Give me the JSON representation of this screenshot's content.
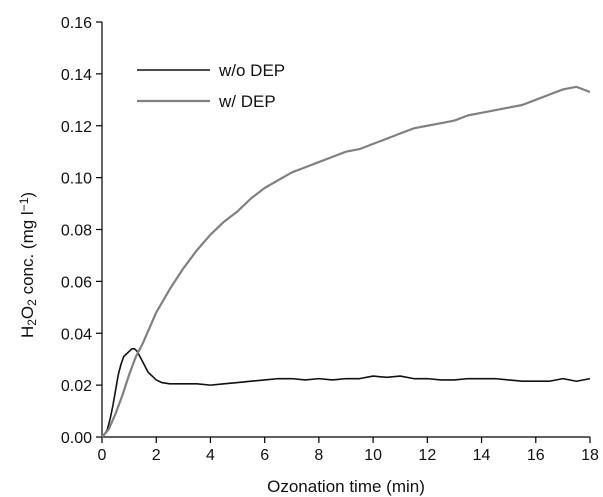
{
  "chart_data": {
    "type": "line",
    "title": "",
    "xlabel": "Ozonation time (min)",
    "ylabel": {
      "prefix": "H",
      "sub1": "2",
      "mid": "O",
      "sub2": "2",
      "suffix": " conc. (mg l",
      "sup": "−1",
      "end": ")"
    },
    "xlim": [
      0,
      18
    ],
    "ylim": [
      0,
      0.16
    ],
    "x_ticks": [
      0,
      2,
      4,
      6,
      8,
      10,
      12,
      14,
      16,
      18
    ],
    "x_tick_labels": [
      "0",
      "2",
      "4",
      "6",
      "8",
      "10",
      "12",
      "14",
      "16",
      "18"
    ],
    "y_ticks": [
      0,
      0.02,
      0.04,
      0.06,
      0.08,
      0.1,
      0.12,
      0.14,
      0.16
    ],
    "y_tick_labels": [
      "0.00",
      "0.02",
      "0.04",
      "0.06",
      "0.08",
      "0.10",
      "0.12",
      "0.14",
      "0.16"
    ],
    "grid": false,
    "legend_position": "top-left",
    "series": [
      {
        "name": "w/o DEP",
        "color": "#111111",
        "x": [
          0,
          0.1,
          0.2,
          0.3,
          0.4,
          0.5,
          0.6,
          0.7,
          0.8,
          0.9,
          1.0,
          1.1,
          1.2,
          1.3,
          1.4,
          1.5,
          1.6,
          1.7,
          1.8,
          1.9,
          2.0,
          2.2,
          2.5,
          3,
          3.5,
          4,
          4.5,
          5,
          5.5,
          6,
          6.5,
          7,
          7.5,
          8,
          8.5,
          9,
          9.5,
          10,
          10.5,
          11,
          11.5,
          12,
          12.5,
          13,
          13.5,
          14,
          14.5,
          15,
          15.5,
          16,
          16.5,
          17,
          17.5,
          18
        ],
        "y": [
          0.0,
          0.001,
          0.003,
          0.007,
          0.012,
          0.018,
          0.024,
          0.028,
          0.031,
          0.032,
          0.033,
          0.034,
          0.034,
          0.033,
          0.031,
          0.029,
          0.027,
          0.025,
          0.024,
          0.023,
          0.022,
          0.021,
          0.0205,
          0.0205,
          0.0205,
          0.02,
          0.0205,
          0.021,
          0.0215,
          0.022,
          0.0225,
          0.0225,
          0.022,
          0.0225,
          0.022,
          0.0225,
          0.0225,
          0.0235,
          0.023,
          0.0235,
          0.0225,
          0.0225,
          0.022,
          0.022,
          0.0225,
          0.0225,
          0.0225,
          0.022,
          0.0215,
          0.0215,
          0.0215,
          0.0225,
          0.0215,
          0.0225
        ]
      },
      {
        "name": "w/ DEP",
        "color": "#808080",
        "x": [
          0,
          0.25,
          0.5,
          0.75,
          1.0,
          1.25,
          1.5,
          1.75,
          2.0,
          2.5,
          3,
          3.5,
          4,
          4.5,
          5,
          5.5,
          6,
          6.5,
          7,
          7.5,
          8,
          8.5,
          9,
          9.5,
          10,
          10.5,
          11,
          11.5,
          12,
          12.5,
          13,
          13.5,
          14,
          14.5,
          15,
          15.5,
          16,
          16.5,
          17,
          17.5,
          18
        ],
        "y": [
          0.0,
          0.003,
          0.009,
          0.016,
          0.024,
          0.031,
          0.036,
          0.042,
          0.048,
          0.057,
          0.065,
          0.072,
          0.078,
          0.083,
          0.087,
          0.092,
          0.096,
          0.099,
          0.102,
          0.104,
          0.106,
          0.108,
          0.11,
          0.111,
          0.113,
          0.115,
          0.117,
          0.119,
          0.12,
          0.121,
          0.122,
          0.124,
          0.125,
          0.126,
          0.127,
          0.128,
          0.13,
          0.132,
          0.134,
          0.135,
          0.133
        ]
      }
    ]
  }
}
